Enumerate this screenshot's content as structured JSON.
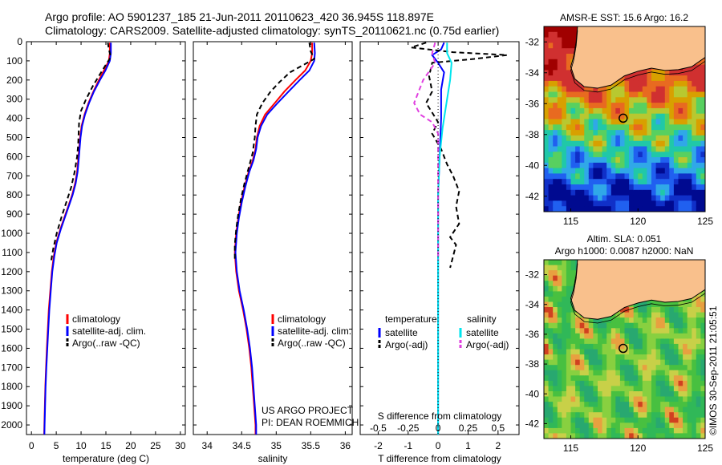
{
  "header": {
    "line1": "Argo profile: AO 5901237_185 21-Jun-2011 20110623_420 36.945S 118.897E",
    "line2": "Climatology: CARS2009. Satellite-adjusted climatology: synTS_20110621.nc (0.75d earlier)"
  },
  "colors": {
    "climatology": "#ff0000",
    "satellite": "#0000ff",
    "argo": "#000000",
    "sal_satellite": "#00e5ee",
    "sal_argo": "#e040e0",
    "land": "#f9c08c"
  },
  "chart_data": [
    {
      "id": "temperature",
      "type": "line",
      "xlabel": "temperature (deg C)",
      "ylabel": "",
      "xlim": [
        -1,
        31
      ],
      "ylim": [
        2050,
        0
      ],
      "xticks": [
        0,
        5,
        10,
        15,
        20,
        25,
        30
      ],
      "yticks": [
        0,
        100,
        200,
        300,
        400,
        500,
        600,
        700,
        800,
        900,
        1000,
        1100,
        1200,
        1300,
        1400,
        1500,
        1600,
        1700,
        1800,
        1900,
        2000
      ],
      "legend": [
        "climatology",
        "satellite-adj. clim.",
        "Argo(..raw -QC)"
      ],
      "legend_position": "lower-right",
      "series": [
        {
          "name": "climatology",
          "color": "#ff0000",
          "dash": false,
          "points": [
            [
              15.8,
              5
            ],
            [
              15.8,
              60
            ],
            [
              15.6,
              100
            ],
            [
              14.6,
              150
            ],
            [
              13.6,
              200
            ],
            [
              12.5,
              260
            ],
            [
              11.5,
              320
            ],
            [
              10.7,
              380
            ],
            [
              10.1,
              440
            ],
            [
              9.8,
              500
            ],
            [
              9.6,
              560
            ],
            [
              9.4,
              620
            ],
            [
              9.2,
              680
            ],
            [
              8.8,
              740
            ],
            [
              8.2,
              800
            ],
            [
              7.4,
              860
            ],
            [
              6.6,
              920
            ],
            [
              5.8,
              980
            ],
            [
              5.0,
              1050
            ],
            [
              4.5,
              1120
            ],
            [
              4.1,
              1200
            ],
            [
              3.8,
              1300
            ],
            [
              3.5,
              1400
            ],
            [
              3.3,
              1500
            ],
            [
              3.1,
              1600
            ],
            [
              2.95,
              1700
            ],
            [
              2.8,
              1800
            ],
            [
              2.7,
              1900
            ],
            [
              2.6,
              2000
            ],
            [
              2.55,
              2060
            ]
          ]
        },
        {
          "name": "satellite-adj. clim.",
          "color": "#0000ff",
          "dash": false,
          "points": [
            [
              16.0,
              5
            ],
            [
              16.0,
              60
            ],
            [
              15.8,
              100
            ],
            [
              14.9,
              150
            ],
            [
              13.8,
              200
            ],
            [
              12.6,
              260
            ],
            [
              11.6,
              320
            ],
            [
              10.8,
              380
            ],
            [
              10.2,
              440
            ],
            [
              9.9,
              500
            ],
            [
              9.7,
              560
            ],
            [
              9.5,
              620
            ],
            [
              9.3,
              680
            ],
            [
              8.9,
              740
            ],
            [
              8.3,
              800
            ],
            [
              7.5,
              860
            ],
            [
              6.7,
              920
            ],
            [
              5.9,
              980
            ],
            [
              5.1,
              1050
            ],
            [
              4.6,
              1120
            ],
            [
              4.2,
              1200
            ],
            [
              3.9,
              1300
            ],
            [
              3.6,
              1400
            ],
            [
              3.4,
              1500
            ],
            [
              3.2,
              1600
            ],
            [
              3.0,
              1700
            ],
            [
              2.85,
              1800
            ],
            [
              2.75,
              1900
            ],
            [
              2.65,
              2000
            ],
            [
              2.6,
              2060
            ]
          ]
        },
        {
          "name": "Argo(..raw -QC)",
          "color": "#000000",
          "dash": true,
          "points": [
            [
              15.4,
              5
            ],
            [
              15.6,
              40
            ],
            [
              16.0,
              80
            ],
            [
              15.0,
              120
            ],
            [
              13.8,
              170
            ],
            [
              12.4,
              230
            ],
            [
              11.0,
              300
            ],
            [
              10.0,
              360
            ],
            [
              9.6,
              420
            ],
            [
              9.5,
              480
            ],
            [
              9.4,
              540
            ],
            [
              9.2,
              600
            ],
            [
              8.7,
              680
            ],
            [
              8.0,
              760
            ],
            [
              7.0,
              840
            ],
            [
              6.0,
              920
            ],
            [
              5.1,
              1000
            ],
            [
              4.4,
              1080
            ],
            [
              4.0,
              1140
            ]
          ]
        }
      ]
    },
    {
      "id": "salinity",
      "type": "line",
      "xlabel": "salinity",
      "ylabel": "",
      "xlim": [
        33.8,
        36.1
      ],
      "ylim": [
        2050,
        0
      ],
      "xticks": [
        34,
        34.5,
        35,
        35.5,
        36
      ],
      "xticklabels": [
        "34",
        "34.5",
        "35",
        "35.5",
        "36"
      ],
      "legend": [
        "climatology",
        "satellite-adj. clim.",
        "Argo(..raw -QC)"
      ],
      "legend_position": "lower-right",
      "annotation": [
        "US ARGO PROJECT",
        "PI: DEAN ROEMMICH"
      ],
      "series": [
        {
          "name": "climatology",
          "color": "#ff0000",
          "dash": false,
          "points": [
            [
              35.52,
              5
            ],
            [
              35.52,
              60
            ],
            [
              35.5,
              100
            ],
            [
              35.42,
              150
            ],
            [
              35.28,
              200
            ],
            [
              35.12,
              260
            ],
            [
              34.98,
              320
            ],
            [
              34.84,
              380
            ],
            [
              34.76,
              440
            ],
            [
              34.72,
              500
            ],
            [
              34.7,
              560
            ],
            [
              34.66,
              620
            ],
            [
              34.6,
              680
            ],
            [
              34.54,
              760
            ],
            [
              34.49,
              840
            ],
            [
              34.45,
              920
            ],
            [
              34.42,
              1000
            ],
            [
              34.4,
              1100
            ],
            [
              34.42,
              1200
            ],
            [
              34.46,
              1300
            ],
            [
              34.52,
              1400
            ],
            [
              34.57,
              1500
            ],
            [
              34.61,
              1600
            ],
            [
              34.64,
              1700
            ],
            [
              34.66,
              1800
            ],
            [
              34.68,
              1900
            ],
            [
              34.7,
              2000
            ],
            [
              34.7,
              2060
            ]
          ]
        },
        {
          "name": "satellite-adj. clim.",
          "color": "#0000ff",
          "dash": false,
          "points": [
            [
              35.55,
              5
            ],
            [
              35.56,
              60
            ],
            [
              35.55,
              100
            ],
            [
              35.48,
              150
            ],
            [
              35.34,
              200
            ],
            [
              35.18,
              260
            ],
            [
              35.02,
              320
            ],
            [
              34.87,
              380
            ],
            [
              34.78,
              440
            ],
            [
              34.73,
              500
            ],
            [
              34.71,
              560
            ],
            [
              34.67,
              620
            ],
            [
              34.61,
              680
            ],
            [
              34.55,
              760
            ],
            [
              34.5,
              840
            ],
            [
              34.46,
              920
            ],
            [
              34.43,
              1000
            ],
            [
              34.41,
              1100
            ],
            [
              34.43,
              1200
            ],
            [
              34.47,
              1300
            ],
            [
              34.53,
              1400
            ],
            [
              34.58,
              1500
            ],
            [
              34.62,
              1600
            ],
            [
              34.65,
              1700
            ],
            [
              34.67,
              1800
            ],
            [
              34.69,
              1900
            ],
            [
              34.71,
              2000
            ],
            [
              34.71,
              2060
            ]
          ]
        },
        {
          "name": "Argo(..raw -QC)",
          "color": "#000000",
          "dash": true,
          "points": [
            [
              35.48,
              5
            ],
            [
              35.5,
              50
            ],
            [
              35.55,
              90
            ],
            [
              35.4,
              120
            ],
            [
              35.2,
              160
            ],
            [
              35.05,
              210
            ],
            [
              34.92,
              260
            ],
            [
              34.8,
              320
            ],
            [
              34.72,
              380
            ],
            [
              34.7,
              440
            ],
            [
              34.69,
              500
            ],
            [
              34.66,
              580
            ],
            [
              34.6,
              660
            ],
            [
              34.54,
              740
            ],
            [
              34.49,
              820
            ],
            [
              34.45,
              900
            ],
            [
              34.42,
              980
            ],
            [
              34.4,
              1060
            ],
            [
              34.4,
              1140
            ]
          ]
        }
      ]
    },
    {
      "id": "difference",
      "type": "line",
      "xlabel": "T difference from climatology",
      "top_label": "S difference from climatology",
      "xlim": [
        -2.6,
        2.7
      ],
      "ylim": [
        2050,
        0
      ],
      "xticks": [
        -2,
        -1,
        0,
        1,
        2
      ],
      "xticklabels": [
        "-2",
        "-1",
        "0",
        "1",
        "2"
      ],
      "sticks": [
        -0.5,
        -0.25,
        0,
        0.25,
        0.5
      ],
      "sticklabels": [
        "-0.5",
        "-0.25",
        "0",
        "0.25",
        "0.5"
      ],
      "legend_left_title": "temperature",
      "legend_right_title": "salinity",
      "legend_left": [
        "satellite",
        "Argo(-adj)"
      ],
      "legend_right": [
        "satellite",
        "Argo(-adj)"
      ],
      "legend_position": "lower",
      "series": [
        {
          "name": "T satellite",
          "color": "#0000ff",
          "dash": false,
          "points": [
            [
              0.2,
              5
            ],
            [
              0.1,
              40
            ],
            [
              -0.2,
              70
            ],
            [
              0.0,
              110
            ],
            [
              0.2,
              160
            ],
            [
              0.1,
              250
            ],
            [
              0.1,
              400
            ],
            [
              0.05,
              600
            ],
            [
              0.0,
              800
            ],
            [
              0.0,
              1000
            ],
            [
              0.0,
              1200
            ],
            [
              0.0,
              1500
            ],
            [
              0.0,
              2060
            ]
          ]
        },
        {
          "name": "T Argo(-adj)",
          "color": "#000000",
          "dash": true,
          "points": [
            [
              -0.4,
              5
            ],
            [
              -0.9,
              30
            ],
            [
              0.5,
              55
            ],
            [
              2.3,
              70
            ],
            [
              1.2,
              90
            ],
            [
              -0.2,
              110
            ],
            [
              -0.3,
              180
            ],
            [
              -0.2,
              260
            ],
            [
              -0.4,
              320
            ],
            [
              -0.2,
              370
            ],
            [
              0.0,
              420
            ],
            [
              -0.2,
              480
            ],
            [
              0.1,
              560
            ],
            [
              0.3,
              640
            ],
            [
              0.5,
              700
            ],
            [
              0.7,
              780
            ],
            [
              0.6,
              860
            ],
            [
              0.7,
              950
            ],
            [
              0.4,
              1020
            ],
            [
              0.6,
              1060
            ],
            [
              0.5,
              1120
            ],
            [
              0.4,
              1180
            ]
          ]
        },
        {
          "name": "S satellite",
          "color": "#00e5ee",
          "dash": false,
          "points": [
            [
              0.3,
              5
            ],
            [
              0.3,
              60
            ],
            [
              0.45,
              110
            ],
            [
              0.4,
              200
            ],
            [
              0.3,
              300
            ],
            [
              0.15,
              450
            ],
            [
              0.05,
              600
            ],
            [
              0.0,
              800
            ],
            [
              0.0,
              1100
            ],
            [
              0.0,
              2060
            ]
          ]
        },
        {
          "name": "S Argo(-adj)",
          "color": "#e040e0",
          "dash": true,
          "points": [
            [
              -0.1,
              5
            ],
            [
              -0.2,
              60
            ],
            [
              -0.1,
              110
            ],
            [
              -0.5,
              200
            ],
            [
              -0.8,
              320
            ],
            [
              -0.6,
              380
            ],
            [
              -0.2,
              420
            ],
            [
              0.0,
              480
            ],
            [
              0.0,
              600
            ],
            [
              0.0,
              800
            ],
            [
              0.0,
              1000
            ],
            [
              0.0,
              1140
            ]
          ]
        },
        {
          "name": "reference",
          "color": "#000000",
          "dash": true,
          "points": [
            [
              0,
              0
            ],
            [
              0,
              2060
            ]
          ]
        }
      ]
    },
    {
      "id": "sst_map",
      "type": "heatmap",
      "title": "AMSR-E SST: 15.6 Argo: 16.2",
      "xlim": [
        113,
        125
      ],
      "ylim": [
        -43,
        -31
      ],
      "xticks": [
        115,
        120,
        125
      ],
      "yticks": [
        -32,
        -34,
        -36,
        -38,
        -40,
        -42
      ],
      "marker": [
        118.897,
        -36.945
      ]
    },
    {
      "id": "sla_map",
      "type": "heatmap",
      "title": "Altim. SLA: 0.051",
      "subtitle": "Argo h1000: 0.0087 h2000: NaN",
      "xlim": [
        113,
        125
      ],
      "ylim": [
        -43,
        -31
      ],
      "xticks": [
        115,
        120,
        125
      ],
      "yticks": [
        -32,
        -34,
        -36,
        -38,
        -40,
        -42
      ],
      "marker": [
        118.897,
        -36.945
      ]
    }
  ],
  "credit": "©IMOS 30-Sep-2011 21:05:51"
}
